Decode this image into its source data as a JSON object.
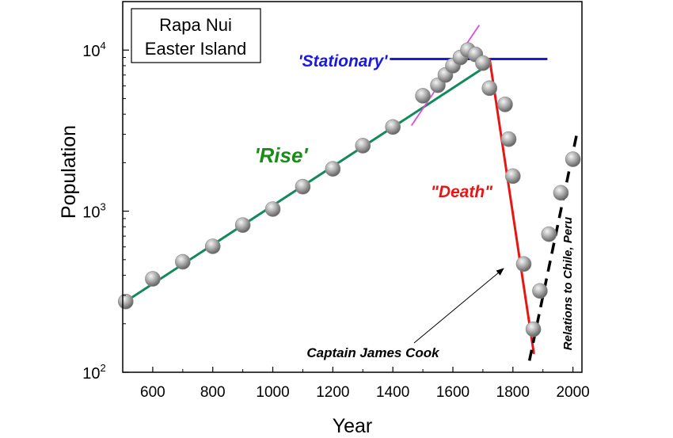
{
  "chart_data": {
    "type": "scatter",
    "title": "",
    "xlabel": "Year",
    "ylabel": "Population",
    "xlim": [
      500,
      2030
    ],
    "ylim": [
      100,
      20000
    ],
    "yscale": "log",
    "x_ticks": [
      600,
      800,
      1000,
      1200,
      1400,
      1600,
      1800,
      2000
    ],
    "y_ticks": [
      {
        "value": 100,
        "base": "10",
        "exp": "2"
      },
      {
        "value": 1000,
        "base": "10",
        "exp": "3"
      },
      {
        "value": 10000,
        "base": "10",
        "exp": "4"
      }
    ],
    "inset_label": [
      "Rapa Nui",
      "Easter Island"
    ],
    "points": [
      {
        "x": 510,
        "y": 275
      },
      {
        "x": 600,
        "y": 380
      },
      {
        "x": 700,
        "y": 485
      },
      {
        "x": 800,
        "y": 605
      },
      {
        "x": 900,
        "y": 820
      },
      {
        "x": 1000,
        "y": 1030
      },
      {
        "x": 1100,
        "y": 1420
      },
      {
        "x": 1200,
        "y": 1830
      },
      {
        "x": 1300,
        "y": 2550
      },
      {
        "x": 1400,
        "y": 3330
      },
      {
        "x": 1500,
        "y": 5200
      },
      {
        "x": 1550,
        "y": 6050
      },
      {
        "x": 1575,
        "y": 7000
      },
      {
        "x": 1600,
        "y": 8000
      },
      {
        "x": 1625,
        "y": 9000
      },
      {
        "x": 1650,
        "y": 10000
      },
      {
        "x": 1675,
        "y": 9400
      },
      {
        "x": 1700,
        "y": 8300
      },
      {
        "x": 1722,
        "y": 5800
      },
      {
        "x": 1774,
        "y": 4600
      },
      {
        "x": 1786,
        "y": 2800
      },
      {
        "x": 1800,
        "y": 1650
      },
      {
        "x": 1836,
        "y": 470
      },
      {
        "x": 1868,
        "y": 185
      },
      {
        "x": 1890,
        "y": 320
      },
      {
        "x": 1920,
        "y": 720
      },
      {
        "x": 1960,
        "y": 1300
      },
      {
        "x": 2000,
        "y": 2100
      }
    ],
    "lines": [
      {
        "name": "'Rise'",
        "color": "#138a5a",
        "style": "solid",
        "points": [
          [
            510,
            275
          ],
          [
            1705,
            7800
          ]
        ]
      },
      {
        "name": "'Stationary'",
        "color": "#1a1adb",
        "style": "solid",
        "points": [
          [
            1390,
            8800
          ],
          [
            1915,
            8800
          ]
        ]
      },
      {
        "name": "\"Death\"",
        "color": "#e81515",
        "style": "solid",
        "points": [
          [
            1722,
            8900
          ],
          [
            1870,
            130
          ]
        ]
      },
      {
        "name": "",
        "color": "#d84ce8",
        "style": "solid",
        "points": [
          [
            1462,
            3400
          ],
          [
            1688,
            14300
          ]
        ]
      },
      {
        "name": "Relations to Chile, Peru",
        "color": "#000000",
        "style": "dashed",
        "points": [
          [
            1855,
            118
          ],
          [
            2015,
            3150
          ]
        ]
      }
    ],
    "annotations": [
      {
        "text": "'Rise'",
        "color": "#1a8c1a"
      },
      {
        "text": "'Stationary'",
        "color": "#1a1adb"
      },
      {
        "text": "\"Death\"",
        "color": "#e81515"
      },
      {
        "text": "Relations to Chile, Peru",
        "color": "#000000"
      },
      {
        "text": "Captain James Cook",
        "color": "#000000",
        "arrow_to": {
          "x": 1774,
          "y": 470
        }
      }
    ]
  }
}
